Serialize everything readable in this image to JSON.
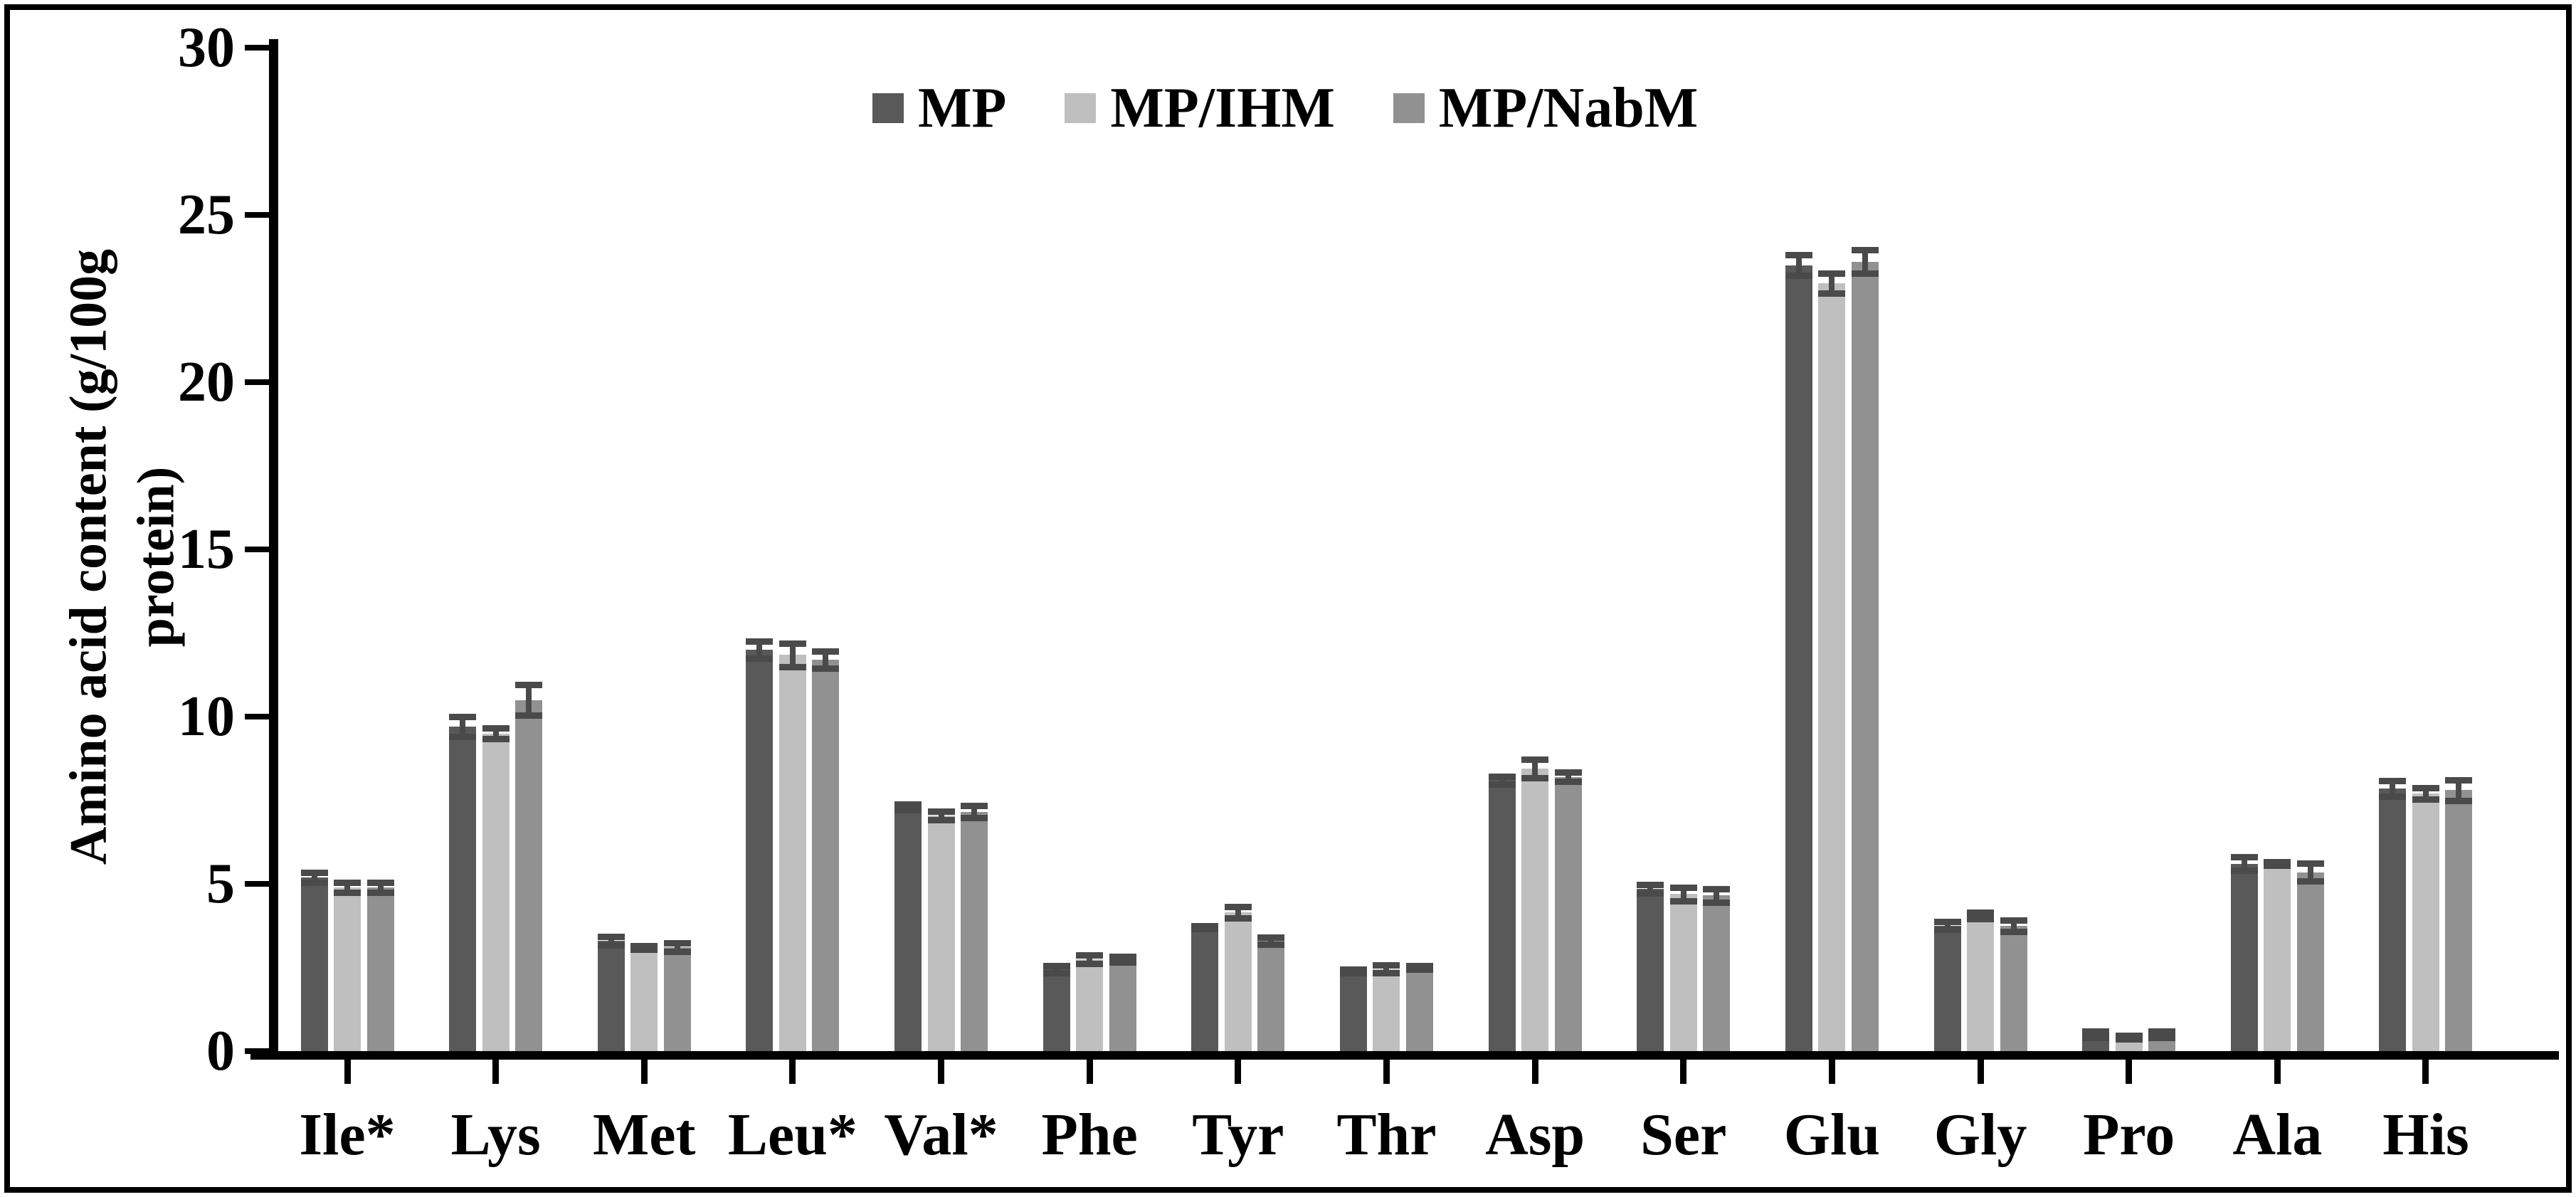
{
  "figure": {
    "background": "#ffffff",
    "border_color": "#000000"
  },
  "y_axis": {
    "title": "Amino acid content (g/100g protein)"
  },
  "chart_data": {
    "type": "bar",
    "title": "",
    "xlabel": "",
    "ylabel": "Amino acid content (g/100g protein)",
    "ylim": [
      0,
      30
    ],
    "yticks": [
      0,
      5,
      10,
      15,
      20,
      25,
      30
    ],
    "grid": false,
    "legend_position": "top-center",
    "error_bars": true,
    "error_bar_color": "#4A4A4A",
    "axis_color": "#000000",
    "categories": [
      "Ile*",
      "Lys",
      "Met",
      "Leu*",
      "Val*",
      "Phe",
      "Tyr",
      "Thr",
      "Asp",
      "Ser",
      "Glu",
      "Gly",
      "Pro",
      "Ala",
      "His"
    ],
    "series": [
      {
        "name": "MP",
        "color": "#595959",
        "values": [
          5.2,
          9.7,
          3.3,
          12.0,
          7.3,
          2.45,
          3.7,
          2.4,
          8.1,
          4.85,
          23.5,
          3.75,
          0.5,
          5.6,
          7.85
        ],
        "errors": [
          0.15,
          0.3,
          0.12,
          0.25,
          0.08,
          0.1,
          0.05,
          0.05,
          0.12,
          0.12,
          0.3,
          0.12,
          0.1,
          0.2,
          0.23
        ]
      },
      {
        "name": "MP/IHM",
        "color": "#BFBFBF",
        "values": [
          4.9,
          9.5,
          3.1,
          11.85,
          7.05,
          2.75,
          4.15,
          2.45,
          8.45,
          4.7,
          22.95,
          4.05,
          0.42,
          5.6,
          7.7
        ],
        "errors": [
          0.15,
          0.15,
          0.05,
          0.35,
          0.13,
          0.13,
          0.17,
          0.12,
          0.27,
          0.2,
          0.3,
          0.1,
          0.05,
          0.05,
          0.17
        ]
      },
      {
        "name": "MP/NabM",
        "color": "#919191",
        "values": [
          4.9,
          10.5,
          3.1,
          11.7,
          7.15,
          2.75,
          3.3,
          2.5,
          8.2,
          4.65,
          23.6,
          3.75,
          0.5,
          5.35,
          7.8
        ],
        "errors": [
          0.15,
          0.45,
          0.13,
          0.25,
          0.18,
          0.08,
          0.11,
          0.05,
          0.13,
          0.2,
          0.35,
          0.17,
          0.1,
          0.27,
          0.3
        ]
      }
    ]
  }
}
